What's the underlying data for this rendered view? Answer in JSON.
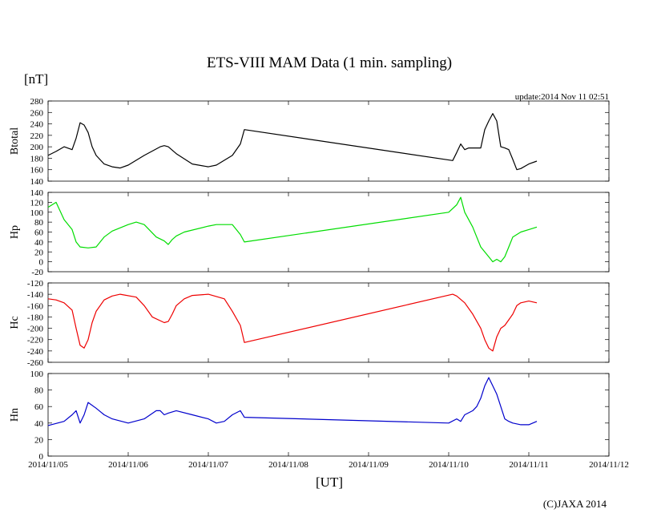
{
  "chart_data": {
    "type": "line",
    "title": "ETS-VIII MAM Data (1 min. sampling)",
    "yunit": "[nT]",
    "xlabel": "[UT]",
    "update": "update:2014 Nov 11 02:51",
    "copyright": "(C)JAXA 2014",
    "x_axis": {
      "unit": "days since 2014/11/05 00:00 UT",
      "range": [
        0,
        7
      ],
      "ticks": [
        0,
        1,
        2,
        3,
        4,
        5,
        6,
        7
      ],
      "tick_labels": [
        "2014/11/05",
        "2014/11/06",
        "2014/11/07",
        "2014/11/08",
        "2014/11/09",
        "2014/11/10",
        "2014/11/11",
        "2014/11/12"
      ]
    },
    "panels": [
      {
        "name": "Btotal",
        "color": "#000000",
        "ylim": [
          140,
          280
        ],
        "yticks": [
          140,
          160,
          180,
          200,
          220,
          240,
          260,
          280
        ],
        "x": [
          0.0,
          0.1,
          0.2,
          0.3,
          0.35,
          0.4,
          0.45,
          0.5,
          0.55,
          0.6,
          0.7,
          0.8,
          0.9,
          1.0,
          1.2,
          1.4,
          1.45,
          1.5,
          1.6,
          1.8,
          2.0,
          2.1,
          2.3,
          2.4,
          2.45,
          5.05,
          5.1,
          5.15,
          5.2,
          5.25,
          5.4,
          5.45,
          5.5,
          5.55,
          5.6,
          5.65,
          5.7,
          5.75,
          5.8,
          5.85,
          5.9,
          6.0,
          6.1
        ],
        "values": [
          185,
          192,
          200,
          195,
          215,
          242,
          238,
          225,
          200,
          185,
          170,
          165,
          163,
          168,
          185,
          200,
          202,
          200,
          188,
          170,
          165,
          168,
          185,
          205,
          230,
          176,
          190,
          205,
          195,
          198,
          198,
          230,
          245,
          258,
          245,
          200,
          198,
          195,
          178,
          160,
          162,
          170,
          175
        ]
      },
      {
        "name": "Hp",
        "color": "#00dd00",
        "ylim": [
          -20,
          140
        ],
        "yticks": [
          -20,
          0,
          20,
          40,
          60,
          80,
          100,
          120,
          140
        ],
        "x": [
          0.0,
          0.1,
          0.2,
          0.3,
          0.35,
          0.4,
          0.5,
          0.6,
          0.7,
          0.8,
          1.0,
          1.1,
          1.2,
          1.35,
          1.45,
          1.5,
          1.55,
          1.6,
          1.7,
          2.0,
          2.1,
          2.3,
          2.4,
          2.45,
          5.0,
          5.1,
          5.15,
          5.2,
          5.3,
          5.4,
          5.5,
          5.55,
          5.6,
          5.65,
          5.7,
          5.75,
          5.8,
          5.9,
          6.0,
          6.1
        ],
        "values": [
          110,
          120,
          85,
          65,
          40,
          30,
          28,
          30,
          50,
          62,
          75,
          80,
          75,
          50,
          42,
          35,
          45,
          52,
          60,
          72,
          75,
          75,
          55,
          40,
          100,
          115,
          130,
          100,
          70,
          30,
          10,
          0,
          5,
          0,
          10,
          30,
          50,
          60,
          65,
          70
        ]
      },
      {
        "name": "Hc",
        "color": "#ee0000",
        "ylim": [
          -260,
          -120
        ],
        "yticks": [
          -260,
          -240,
          -220,
          -200,
          -180,
          -160,
          -140,
          -120
        ],
        "x": [
          0.0,
          0.1,
          0.2,
          0.3,
          0.35,
          0.4,
          0.45,
          0.5,
          0.55,
          0.6,
          0.7,
          0.8,
          0.9,
          1.1,
          1.2,
          1.3,
          1.45,
          1.5,
          1.55,
          1.6,
          1.7,
          1.8,
          2.0,
          2.2,
          2.3,
          2.4,
          2.45,
          5.05,
          5.1,
          5.2,
          5.3,
          5.4,
          5.45,
          5.5,
          5.55,
          5.6,
          5.65,
          5.7,
          5.75,
          5.8,
          5.85,
          5.9,
          6.0,
          6.1
        ],
        "values": [
          -148,
          -150,
          -155,
          -168,
          -200,
          -230,
          -235,
          -220,
          -190,
          -170,
          -150,
          -143,
          -140,
          -145,
          -160,
          -180,
          -190,
          -188,
          -175,
          -160,
          -148,
          -142,
          -140,
          -148,
          -170,
          -195,
          -225,
          -140,
          -143,
          -155,
          -175,
          -200,
          -220,
          -235,
          -240,
          -215,
          -200,
          -195,
          -185,
          -175,
          -160,
          -155,
          -152,
          -155
        ]
      },
      {
        "name": "Hn",
        "color": "#0000cc",
        "ylim": [
          0,
          100
        ],
        "yticks": [
          0,
          20,
          40,
          60,
          80,
          100
        ],
        "x": [
          0.0,
          0.2,
          0.3,
          0.35,
          0.4,
          0.45,
          0.5,
          0.6,
          0.7,
          0.8,
          1.0,
          1.2,
          1.35,
          1.4,
          1.45,
          1.5,
          1.6,
          1.8,
          2.0,
          2.1,
          2.2,
          2.3,
          2.4,
          2.45,
          5.0,
          5.1,
          5.15,
          5.2,
          5.3,
          5.35,
          5.4,
          5.45,
          5.5,
          5.55,
          5.6,
          5.65,
          5.7,
          5.75,
          5.8,
          5.9,
          6.0,
          6.1
        ],
        "values": [
          37,
          42,
          50,
          55,
          40,
          50,
          65,
          58,
          50,
          45,
          40,
          45,
          55,
          55,
          50,
          52,
          55,
          50,
          45,
          40,
          42,
          50,
          55,
          47,
          40,
          45,
          42,
          50,
          55,
          60,
          70,
          85,
          95,
          85,
          75,
          60,
          45,
          42,
          40,
          38,
          38,
          42
        ]
      }
    ]
  }
}
